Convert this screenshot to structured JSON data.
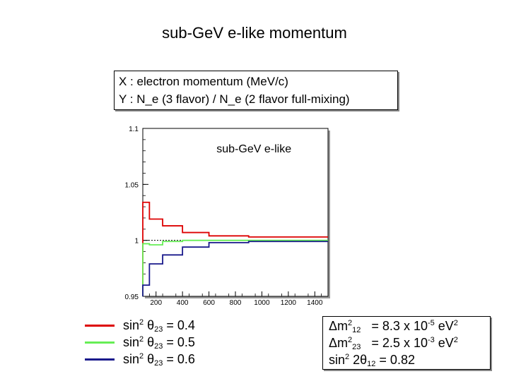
{
  "title": "sub-GeV e-like momentum",
  "axis_box": {
    "x_line": "X :  electron momentum (MeV/c)",
    "y_line": "Y :  N_e (3 flavor) / N_e (2 flavor full-mixing)"
  },
  "legend": [
    {
      "prefix": "sin",
      "sup": "2",
      "mid": " θ",
      "sub": "23",
      "value": " = 0.4",
      "color": "#dd0000"
    },
    {
      "prefix": "sin",
      "sup": "2",
      "mid": " θ",
      "sub": "23",
      "value": " = 0.5",
      "color": "#66ee55"
    },
    {
      "prefix": "sin",
      "sup": "2",
      "mid": " θ",
      "sub": "23",
      "value": " = 0.6",
      "color": "#1a1a8c"
    }
  ],
  "params": {
    "dm12": {
      "prefix": "Δm",
      "sup": "2",
      "sub": "12",
      "mid": "   = 8.3 x 10",
      "exp": "-5",
      "unit": " eV",
      "unit_sup": "2"
    },
    "dm23": {
      "prefix": "Δm",
      "sup": "2",
      "sub": "23",
      "mid": "   = 2.5 x 10",
      "exp": "-3",
      "unit": " eV",
      "unit_sup": "2"
    },
    "sin12": {
      "prefix": "sin",
      "sup": "2",
      "mid": " 2θ",
      "sub": "12",
      "value": " = 0.82"
    }
  },
  "chart_data": {
    "type": "line",
    "title": "sub-GeV e-like",
    "xlim": [
      100,
      1500
    ],
    "ylim": [
      0.95,
      1.1
    ],
    "x_ticks": [
      200,
      400,
      600,
      800,
      1000,
      1200,
      1400
    ],
    "y_ticks": [
      0.95,
      1,
      1.05,
      1.1
    ],
    "y_tick_labels": [
      "0.95",
      "1",
      "1.05",
      "1.1"
    ],
    "reference_line": 1.0,
    "bin_edges": [
      100,
      150,
      250,
      400,
      600,
      900,
      1500
    ],
    "series": [
      {
        "name": "sin2 θ23 = 0.4",
        "color": "#dd0000",
        "values": [
          0.95,
          1.034,
          1.019,
          1.013,
          1.007,
          1.004,
          1.003
        ]
      },
      {
        "name": "sin2 θ23 = 0.5",
        "color": "#66ee55",
        "values": [
          0.95,
          0.997,
          0.996,
          0.999,
          1.0,
          1.0,
          1.0
        ]
      },
      {
        "name": "sin2 θ23 = 0.6",
        "color": "#1a1a8c",
        "values": [
          0.95,
          0.96,
          0.979,
          0.987,
          0.994,
          0.998,
          0.999
        ]
      }
    ],
    "step_values": [
      [
        1.034,
        1.019,
        1.013,
        1.007,
        1.004,
        1.003
      ],
      [
        0.997,
        0.996,
        0.999,
        1.0,
        1.0,
        1.0
      ],
      [
        0.96,
        0.979,
        0.987,
        0.994,
        0.998,
        0.999
      ]
    ]
  }
}
